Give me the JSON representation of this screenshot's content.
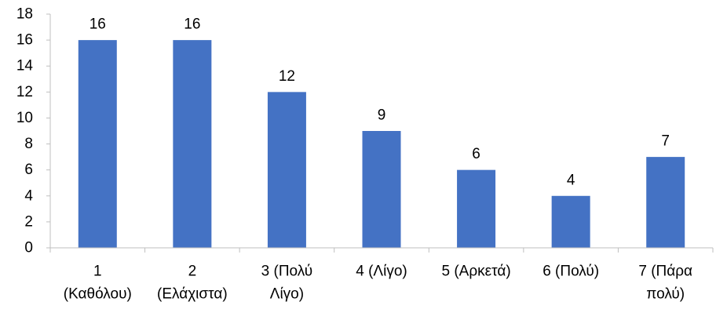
{
  "chart_data": {
    "type": "bar",
    "categories": [
      [
        "1",
        "(Καθόλου)"
      ],
      [
        "2",
        "(Ελάχιστα)"
      ],
      [
        "3 (Πολύ",
        "Λίγο)"
      ],
      [
        "4 (Λίγο)"
      ],
      [
        "5 (Αρκετά)"
      ],
      [
        "6 (Πολύ)"
      ],
      [
        "7 (Πάρα",
        "πολύ)"
      ]
    ],
    "values": [
      16,
      16,
      12,
      9,
      6,
      4,
      7
    ],
    "data_labels": [
      "16",
      "16",
      "12",
      "9",
      "6",
      "4",
      "7"
    ],
    "y_ticks": [
      "0",
      "2",
      "4",
      "6",
      "8",
      "10",
      "12",
      "14",
      "16",
      "18"
    ],
    "ylim": [
      0,
      18
    ],
    "grid": false,
    "legend": "none",
    "bar_color": "#4472C4",
    "axis_color": "#BFBFBF"
  }
}
